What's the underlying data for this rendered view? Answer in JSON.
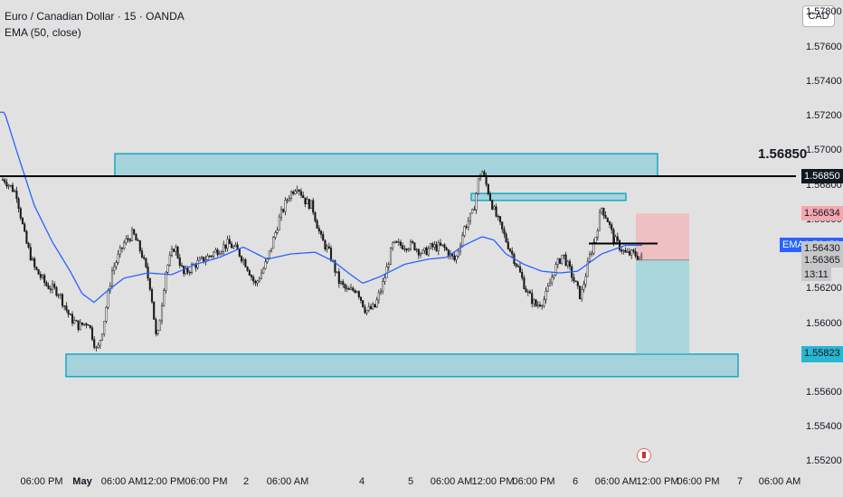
{
  "chart_data": {
    "type": "candlestick",
    "title": "Euro / Canadian Dollar · 15 · OANDA",
    "subtitle": "EMA (50, close)",
    "currency_button": "CAD",
    "y_ticks": [
      "1.57800",
      "1.57600",
      "1.57400",
      "1.57200",
      "1.57000",
      "1.56800",
      "1.56600",
      "1.56400",
      "1.56200",
      "1.56000",
      "1.55800",
      "1.55600",
      "1.55400",
      "1.55200"
    ],
    "x_ticks": [
      "06:00 PM",
      "May",
      "06:00 AM",
      "12:00 PM",
      "06:00 PM",
      "2",
      "06:00 AM",
      "4",
      "5",
      "06:00 AM",
      "12:00 PM",
      "06:00 PM",
      "6",
      "06:00 AM",
      "12:00 PM",
      "06:00 PM",
      "7",
      "06:00 AM"
    ],
    "ylim": [
      1.5515,
      1.5787
    ],
    "resistance_line": {
      "value": 1.5685,
      "label": "1.56850"
    },
    "price_labels": {
      "resistance": "1.56850",
      "stop_loss": "1.56634",
      "ema_tag": "EMA",
      "ema_value": "1.56453",
      "high_label": "1.56430",
      "current_price": "1.56365",
      "countdown": "13:11",
      "target": "1.55823"
    },
    "close_path": [
      [
        0,
        1.5683
      ],
      [
        0.02,
        1.5675
      ],
      [
        0.035,
        1.5648
      ],
      [
        0.05,
        1.5632
      ],
      [
        0.07,
        1.5622
      ],
      [
        0.09,
        1.5618
      ],
      [
        0.11,
        1.5603
      ],
      [
        0.125,
        1.5598
      ],
      [
        0.14,
        1.5601
      ],
      [
        0.155,
        1.5583
      ],
      [
        0.165,
        1.5598
      ],
      [
        0.18,
        1.563
      ],
      [
        0.2,
        1.5646
      ],
      [
        0.215,
        1.5652
      ],
      [
        0.23,
        1.564
      ],
      [
        0.245,
        1.562
      ],
      [
        0.255,
        1.5588
      ],
      [
        0.27,
        1.563
      ],
      [
        0.285,
        1.5645
      ],
      [
        0.3,
        1.5628
      ],
      [
        0.315,
        1.5633
      ],
      [
        0.335,
        1.5637
      ],
      [
        0.36,
        1.5643
      ],
      [
        0.375,
        1.5646
      ],
      [
        0.39,
        1.5642
      ],
      [
        0.405,
        1.5634
      ],
      [
        0.42,
        1.5622
      ],
      [
        0.44,
        1.5636
      ],
      [
        0.46,
        1.566
      ],
      [
        0.475,
        1.5673
      ],
      [
        0.49,
        1.568
      ],
      [
        0.505,
        1.567
      ],
      [
        0.515,
        1.5668
      ],
      [
        0.53,
        1.5649
      ],
      [
        0.545,
        1.564
      ],
      [
        0.56,
        1.5624
      ],
      [
        0.575,
        1.5618
      ],
      [
        0.59,
        1.562
      ],
      [
        0.605,
        1.5607
      ],
      [
        0.62,
        1.5609
      ],
      [
        0.635,
        1.5624
      ],
      [
        0.65,
        1.5645
      ],
      [
        0.665,
        1.5645
      ],
      [
        0.685,
        1.5645
      ],
      [
        0.7,
        1.564
      ],
      [
        0.715,
        1.5644
      ],
      [
        0.735,
        1.5644
      ],
      [
        0.755,
        1.5636
      ],
      [
        0.77,
        1.5655
      ],
      [
        0.785,
        1.5664
      ],
      [
        0.795,
        1.5685
      ],
      [
        0.8,
        1.5688
      ],
      [
        0.82,
        1.5665
      ],
      [
        0.84,
        1.5648
      ],
      [
        0.86,
        1.5632
      ],
      [
        0.875,
        1.5618
      ],
      [
        0.89,
        1.561
      ],
      [
        0.905,
        1.5614
      ],
      [
        0.92,
        1.563
      ],
      [
        0.935,
        1.564
      ],
      [
        0.95,
        1.5628
      ],
      [
        0.965,
        1.5615
      ],
      [
        0.98,
        1.5638
      ],
      [
        0.99,
        1.565
      ],
      [
        1.0,
        1.5667
      ],
      [
        1.01,
        1.566
      ],
      [
        1.02,
        1.5649
      ],
      [
        1.04,
        1.564
      ],
      [
        1.055,
        1.564
      ],
      [
        1.07,
        1.5637
      ]
    ],
    "ema_path": [
      [
        0,
        1.5722
      ],
      [
        0.02,
        1.57
      ],
      [
        0.05,
        1.5668
      ],
      [
        0.08,
        1.5647
      ],
      [
        0.11,
        1.563
      ],
      [
        0.13,
        1.5617
      ],
      [
        0.15,
        1.5612
      ],
      [
        0.17,
        1.5618
      ],
      [
        0.2,
        1.5626
      ],
      [
        0.24,
        1.5629
      ],
      [
        0.28,
        1.5628
      ],
      [
        0.32,
        1.5634
      ],
      [
        0.36,
        1.5638
      ],
      [
        0.4,
        1.5644
      ],
      [
        0.44,
        1.5637
      ],
      [
        0.48,
        1.564
      ],
      [
        0.52,
        1.5641
      ],
      [
        0.55,
        1.5636
      ],
      [
        0.58,
        1.5628
      ],
      [
        0.6,
        1.5623
      ],
      [
        0.63,
        1.5627
      ],
      [
        0.67,
        1.5634
      ],
      [
        0.71,
        1.5637
      ],
      [
        0.74,
        1.5638
      ],
      [
        0.77,
        1.5645
      ],
      [
        0.8,
        1.565
      ],
      [
        0.82,
        1.5648
      ],
      [
        0.84,
        1.564
      ],
      [
        0.87,
        1.5634
      ],
      [
        0.9,
        1.563
      ],
      [
        0.93,
        1.5629
      ],
      [
        0.96,
        1.563
      ],
      [
        1.0,
        1.564
      ],
      [
        1.04,
        1.5645
      ],
      [
        1.07,
        1.5645
      ]
    ],
    "zones": [
      {
        "name": "upper-supply-zone",
        "y": [
          1.5685,
          1.5698
        ]
      },
      {
        "name": "mid-supply-zone",
        "y": [
          1.5671,
          1.5675
        ]
      },
      {
        "name": "lower-demand-zone",
        "y": [
          1.5569,
          1.5582
        ]
      }
    ],
    "position": {
      "entry": 1.56365,
      "stop": 1.56634,
      "target": 1.55823
    },
    "colors": {
      "background": "#e1e1e1",
      "up_candle": "#ffffff",
      "down_candle": "#1a1a1a",
      "wick": "#1a1a1a",
      "ema": "#2962ff",
      "zone_fill": "#a6d3db",
      "zone_border": "#17a7c7",
      "stop_fill": "#f0b8bd",
      "target_fill": "#a3d6dc",
      "resistance_line": "#000000",
      "label_target_bg": "#29b6d0",
      "label_ema_bg": "#2962ff",
      "label_stop_bg": "#f5a7ae"
    }
  }
}
